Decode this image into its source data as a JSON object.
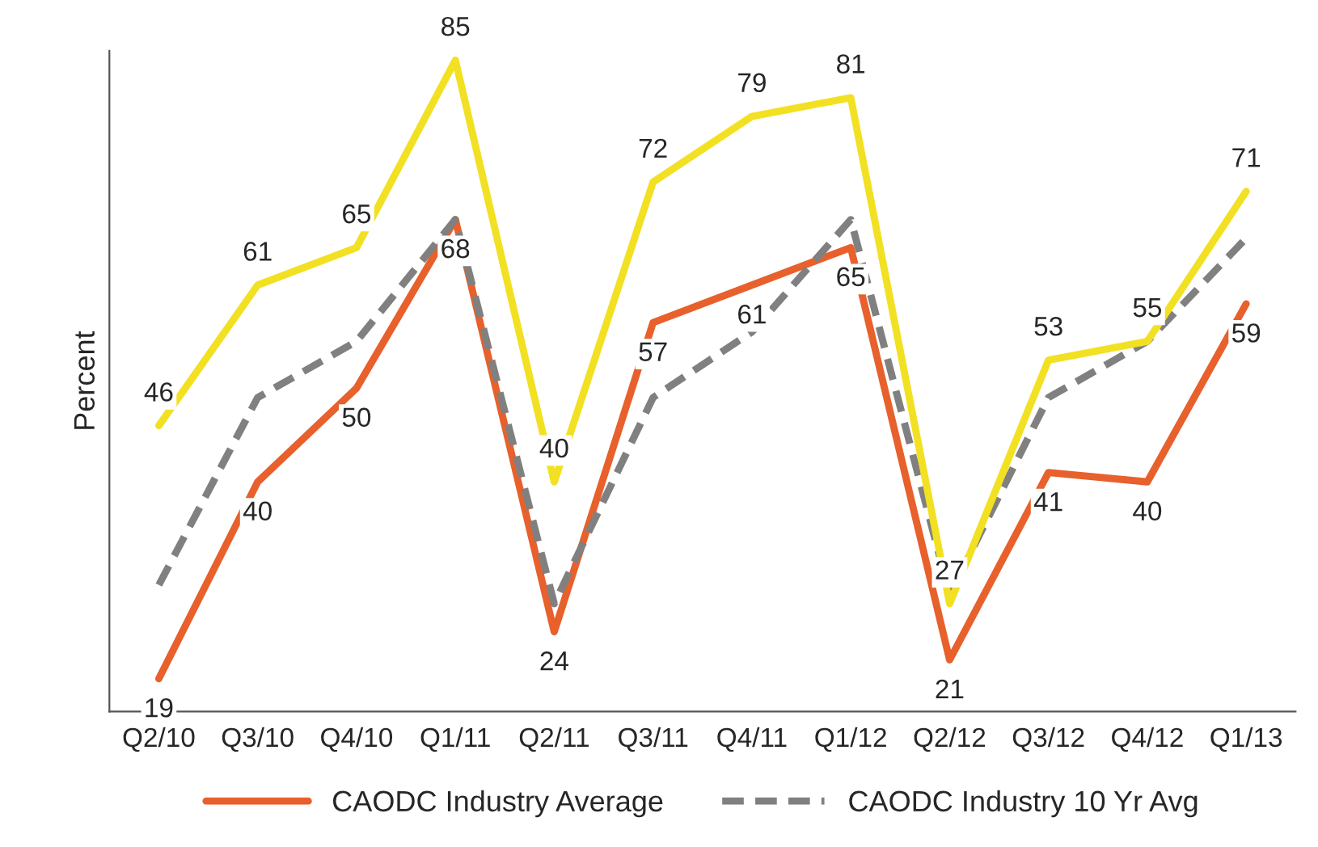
{
  "chart_data": {
    "type": "line",
    "ylabel": "Percent",
    "categories": [
      "Q2/10",
      "Q3/10",
      "Q4/10",
      "Q1/11",
      "Q2/11",
      "Q3/11",
      "Q4/11",
      "Q1/12",
      "Q2/12",
      "Q3/12",
      "Q4/12",
      "Q1/13"
    ],
    "series": [
      {
        "name": "CAODC Industry Average",
        "color": "#e8602c",
        "line_style": "solid",
        "values": [
          19,
          40,
          50,
          68,
          24,
          57,
          61,
          65,
          21,
          41,
          40,
          59
        ],
        "value_labels": [
          "19",
          "40",
          "50",
          "68",
          "24",
          "57",
          "61",
          "65",
          "21",
          "41",
          "40",
          "59"
        ]
      },
      {
        "name": "CAODC Industry 10 Yr Avg",
        "color": "#808080",
        "line_style": "dashed",
        "values": [
          29,
          49,
          55,
          68,
          27,
          49,
          56,
          68,
          28,
          49,
          55,
          66
        ]
      },
      {
        "color": "#f2e022",
        "line_style": "solid",
        "values": [
          46,
          61,
          65,
          85,
          40,
          72,
          79,
          81,
          27,
          53,
          55,
          71
        ],
        "value_labels": [
          "46",
          "61",
          "65",
          "85",
          "40",
          "72",
          "79",
          "81",
          "27",
          "53",
          "55",
          "71"
        ]
      }
    ],
    "ylim": [
      15.5,
      86
    ],
    "tick_labels": "x",
    "grid": false,
    "legend": "bottom",
    "marker": "none"
  }
}
